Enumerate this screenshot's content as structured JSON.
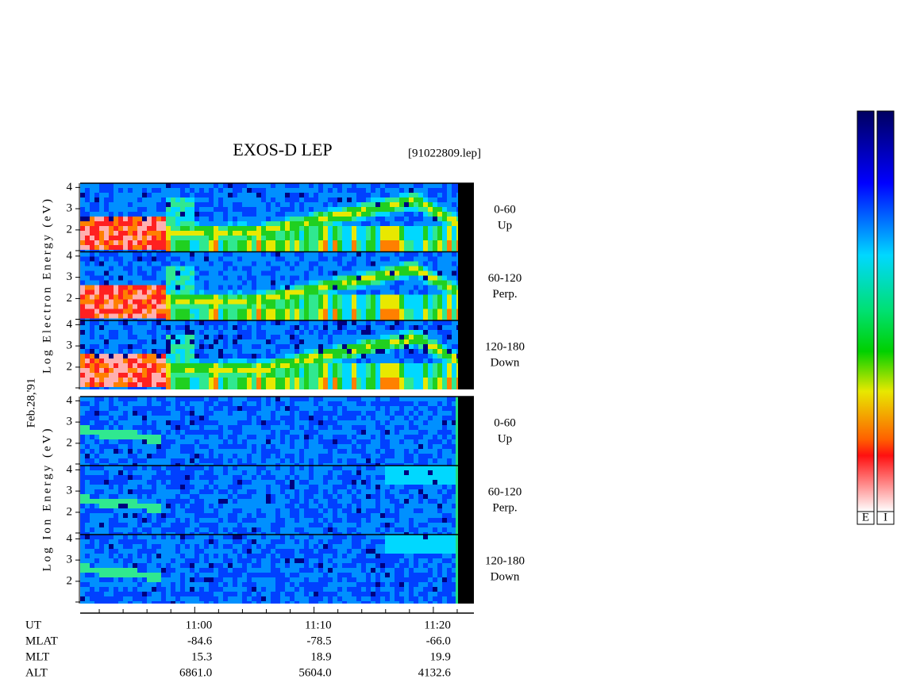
{
  "chart_data": {
    "type": "spectrogram",
    "title": "EXOS-D LEP",
    "file_label": "[91022809.lep]",
    "date_label": "Feb.28,'91",
    "ylim": [
      0.95,
      4.2
    ],
    "yticks": [
      2,
      3,
      4
    ],
    "xlim": [
      50.4,
      83.4
    ],
    "xticks": [
      {
        "value": 60,
        "label": "11:00"
      },
      {
        "value": 70,
        "label": "11:10"
      },
      {
        "value": 80,
        "label": "11:20"
      }
    ],
    "xminor_ticks": [
      52,
      54,
      56,
      58,
      62,
      64,
      66,
      68,
      72,
      74,
      76,
      78,
      82
    ],
    "groups": [
      {
        "y_label": "Log Electron Energy (eV)",
        "panels": [
          {
            "angle": "0-60",
            "direction": "Up"
          },
          {
            "angle": "60-120",
            "direction": "Perp."
          },
          {
            "angle": "120-180",
            "direction": "Down"
          }
        ]
      },
      {
        "y_label": "Log Ion Energy (eV)",
        "panels": [
          {
            "angle": "0-60",
            "direction": "Up"
          },
          {
            "angle": "60-120",
            "direction": "Perp."
          },
          {
            "angle": "120-180",
            "direction": "Down"
          }
        ]
      }
    ],
    "ut_label": "UT",
    "ephemeris": [
      {
        "label": "MLAT",
        "values": [
          "-84.6",
          "-78.5",
          "-66.0"
        ]
      },
      {
        "label": "MLT",
        "values": [
          "15.3",
          "18.9",
          "19.9"
        ]
      },
      {
        "label": "ALT",
        "values": [
          "6861.0",
          "5604.0",
          "4132.6"
        ]
      }
    ],
    "colorbars": [
      {
        "label": "E"
      },
      {
        "label": "I"
      }
    ]
  }
}
